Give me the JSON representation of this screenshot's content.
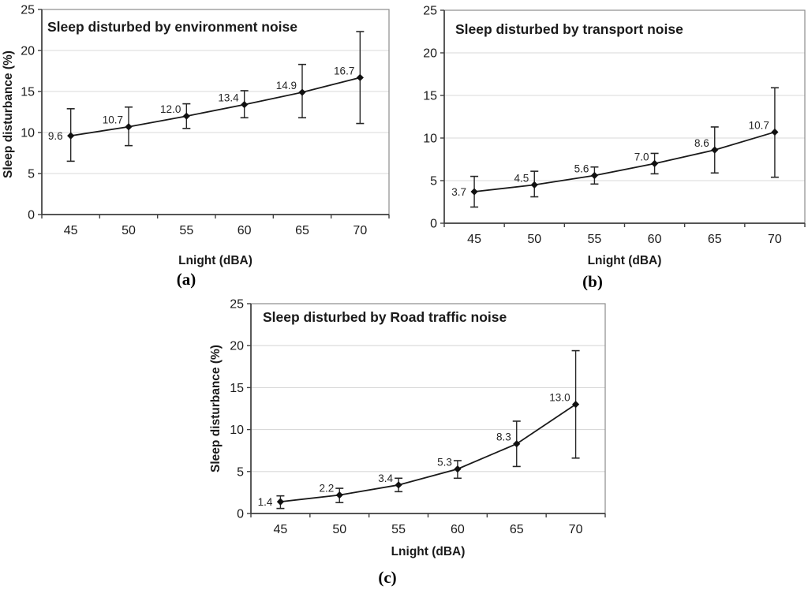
{
  "figure": {
    "background": "#ffffff",
    "text_color": "#1a1a1a",
    "grid_color": "#d9d9d9",
    "frame_color": "#8c8c8c",
    "axis_color": "#404040",
    "series_color": "#1a1a1a"
  },
  "chart_data": [
    {
      "type": "line",
      "panel_label": "(a)",
      "title": "Sleep disturbed by environment noise",
      "xlabel": "Lnight (dBA)",
      "ylabel": "Sleep disturbance (%)",
      "x": [
        45,
        50,
        55,
        60,
        65,
        70
      ],
      "values": [
        9.6,
        10.7,
        12.0,
        13.4,
        14.9,
        16.7
      ],
      "error_low": [
        6.5,
        8.4,
        10.5,
        11.8,
        11.8,
        11.1
      ],
      "error_high": [
        12.9,
        13.1,
        13.5,
        15.1,
        18.3,
        22.3
      ],
      "ylim": [
        0,
        25
      ],
      "yticks": [
        0,
        5,
        10,
        15,
        20,
        25
      ],
      "grid": true,
      "legend": "none",
      "marker": "diamond"
    },
    {
      "type": "line",
      "panel_label": "(b)",
      "title": "Sleep disturbed by transport noise",
      "xlabel": "Lnight (dBA)",
      "ylabel": "",
      "x": [
        45,
        50,
        55,
        60,
        65,
        70
      ],
      "values": [
        3.7,
        4.5,
        5.6,
        7.0,
        8.6,
        10.7
      ],
      "error_low": [
        1.9,
        3.1,
        4.6,
        5.8,
        5.9,
        5.4
      ],
      "error_high": [
        5.5,
        6.1,
        6.6,
        8.2,
        11.3,
        15.9
      ],
      "ylim": [
        0,
        25
      ],
      "yticks": [
        0,
        5,
        10,
        15,
        20,
        25
      ],
      "grid": true,
      "legend": "none",
      "marker": "diamond"
    },
    {
      "type": "line",
      "panel_label": "(c)",
      "title": "Sleep disturbed by Road traffic noise",
      "xlabel": "Lnight (dBA)",
      "ylabel": "Sleep disturbance (%)",
      "x": [
        45,
        50,
        55,
        60,
        65,
        70
      ],
      "values": [
        1.4,
        2.2,
        3.4,
        5.3,
        8.3,
        13.0
      ],
      "error_low": [
        0.6,
        1.3,
        2.6,
        4.2,
        5.6,
        6.6
      ],
      "error_high": [
        2.1,
        3.0,
        4.2,
        6.3,
        11.0,
        19.4
      ],
      "ylim": [
        0,
        25
      ],
      "yticks": [
        0,
        5,
        10,
        15,
        20,
        25
      ],
      "grid": true,
      "legend": "none",
      "marker": "diamond"
    }
  ]
}
